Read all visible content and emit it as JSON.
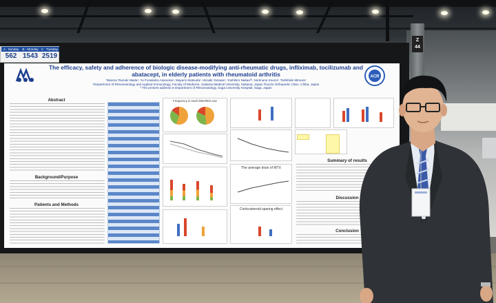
{
  "counter_sign": {
    "cells": [
      {
        "label": "A · Sunday",
        "value": "562"
      },
      {
        "label": "B · Monday",
        "value": "1543"
      },
      {
        "label": "C · Tuesday",
        "value": "2519"
      }
    ]
  },
  "pillar_sign": "Z\n44",
  "poster": {
    "title": "The efficacy, safety and adherence of biologic disease-modifying anti-rheumatic drugs, infliximab, tocilizumab and abatacept, in elderly patients with rheumatoid arthritis",
    "authors": "Takuma Tsuzuki Wada¹, Yu Funakubo Asanuma¹, Mayumi Matsuda¹, Hiroaki Yazawa¹, Yoshihiro Nakao²³, Norimune Kouzu², Toshihide Mimura¹",
    "affiliations": "¹Department of Rheumatology and Applied Immunology, Faculty of Medicine, Saitama Medical University, Saitama, Japan  ²Kouzu Orthopedic Clinic, Chiba, Japan",
    "present_address": "³ The present address is Department of Rheumatology, Saga University Hospital, Saga, Japan",
    "logo_text": "ACR",
    "sections": {
      "abstract": "Abstract",
      "background": "Background/Purpose",
      "patients": "Patients and Methods",
      "summary": "Summary of results",
      "discussion": "Discussion",
      "conclusion": "Conclusion"
    },
    "chart_titles": {
      "freq": "Frequency in each DMARDs use",
      "mtx": "The average dose of MTX",
      "cortico": "Corticosteroid sparing effect"
    }
  },
  "colors": {
    "poster_title": "#1d3f8f",
    "table_blue": "#5b87c9",
    "pie_orange": "#f0a23a",
    "pie_green": "#7db54a",
    "bar_red": "#d9472b",
    "bar_blue": "#3f6fc1",
    "highlight_yellow": "#fff7a8"
  }
}
